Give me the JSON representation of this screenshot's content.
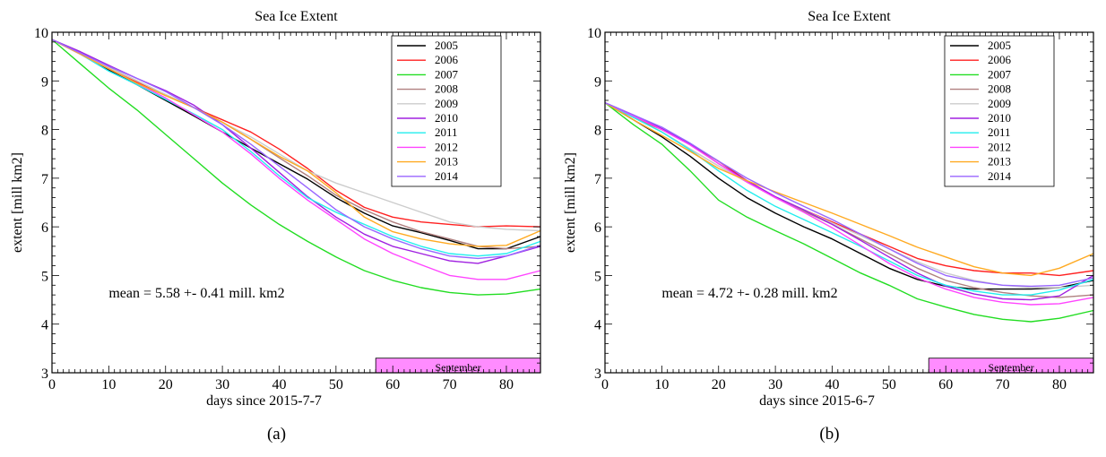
{
  "chart_data": [
    {
      "panel_label": "(a)",
      "type": "line",
      "title": "Sea Ice Extent",
      "xlabel": "days since 2015-7-7",
      "ylabel": "extent [mill km2]",
      "xlim": [
        0,
        86
      ],
      "ylim": [
        3,
        10
      ],
      "xticks": [
        0,
        10,
        20,
        30,
        40,
        50,
        60,
        70,
        80
      ],
      "yticks": [
        3,
        4,
        5,
        6,
        7,
        8,
        9,
        10
      ],
      "grid": false,
      "legend_position": "top-right",
      "annotation": "mean  = 5.58 +- 0.41 mill. km2",
      "shaded_region": {
        "label": "September",
        "x": [
          57,
          86
        ],
        "y": [
          3,
          3.3
        ],
        "color": "#ff66ff"
      },
      "x": [
        0,
        5,
        10,
        15,
        20,
        25,
        30,
        35,
        40,
        45,
        50,
        55,
        60,
        65,
        70,
        75,
        80,
        86
      ],
      "series": [
        {
          "name": "2005",
          "color": "#000000",
          "values": [
            9.85,
            9.55,
            9.22,
            8.92,
            8.6,
            8.28,
            7.95,
            7.62,
            7.3,
            6.98,
            6.6,
            6.28,
            6.02,
            5.88,
            5.72,
            5.55,
            5.55,
            5.8
          ]
        },
        {
          "name": "2006",
          "color": "#ff2020",
          "values": [
            9.85,
            9.55,
            9.25,
            8.97,
            8.7,
            8.45,
            8.2,
            7.95,
            7.6,
            7.2,
            6.75,
            6.4,
            6.2,
            6.1,
            6.05,
            6.0,
            6.02,
            6.0
          ]
        },
        {
          "name": "2007",
          "color": "#22dd22",
          "values": [
            9.85,
            9.35,
            8.85,
            8.4,
            7.9,
            7.4,
            6.9,
            6.45,
            6.05,
            5.7,
            5.38,
            5.1,
            4.9,
            4.75,
            4.65,
            4.6,
            4.62,
            4.72
          ]
        },
        {
          "name": "2008",
          "color": "#b08080",
          "values": [
            9.85,
            9.55,
            9.28,
            9.0,
            8.72,
            8.45,
            8.15,
            7.8,
            7.42,
            7.05,
            6.65,
            6.35,
            6.1,
            5.9,
            5.75,
            5.6,
            5.55,
            5.6
          ]
        },
        {
          "name": "2009",
          "color": "#cccccc",
          "values": [
            9.85,
            9.55,
            9.27,
            9.0,
            8.72,
            8.45,
            8.15,
            7.85,
            7.5,
            7.15,
            6.9,
            6.7,
            6.5,
            6.3,
            6.1,
            6.0,
            5.95,
            5.92
          ]
        },
        {
          "name": "2010",
          "color": "#a020e0",
          "values": [
            9.85,
            9.6,
            9.32,
            9.05,
            8.8,
            8.5,
            8.1,
            7.62,
            7.12,
            6.62,
            6.2,
            5.85,
            5.6,
            5.45,
            5.3,
            5.25,
            5.4,
            5.6
          ]
        },
        {
          "name": "2011",
          "color": "#22eeee",
          "values": [
            9.85,
            9.55,
            9.2,
            8.92,
            8.62,
            8.32,
            8.0,
            7.55,
            7.05,
            6.6,
            6.3,
            6.05,
            5.8,
            5.6,
            5.45,
            5.4,
            5.45,
            5.7
          ]
        },
        {
          "name": "2012",
          "color": "#ff44ff",
          "values": [
            9.85,
            9.55,
            9.25,
            8.95,
            8.65,
            8.3,
            7.95,
            7.5,
            7.0,
            6.55,
            6.15,
            5.75,
            5.45,
            5.22,
            5.0,
            4.92,
            4.92,
            5.1
          ]
        },
        {
          "name": "2013",
          "color": "#ffaa22",
          "values": [
            9.85,
            9.55,
            9.25,
            8.95,
            8.7,
            8.45,
            8.15,
            7.8,
            7.45,
            7.15,
            6.7,
            6.2,
            5.9,
            5.75,
            5.65,
            5.6,
            5.62,
            5.92
          ]
        },
        {
          "name": "2014",
          "color": "#9966ff",
          "values": [
            9.85,
            9.57,
            9.3,
            9.05,
            8.78,
            8.45,
            8.1,
            7.7,
            7.25,
            6.8,
            6.35,
            6.0,
            5.75,
            5.55,
            5.4,
            5.35,
            5.4,
            5.62
          ]
        }
      ]
    },
    {
      "panel_label": "(b)",
      "type": "line",
      "title": "Sea Ice Extent",
      "xlabel": "days since 2015-6-7",
      "ylabel": "extent [mill km2]",
      "xlim": [
        0,
        86
      ],
      "ylim": [
        3,
        10
      ],
      "xticks": [
        0,
        10,
        20,
        30,
        40,
        50,
        60,
        70,
        80
      ],
      "yticks": [
        3,
        4,
        5,
        6,
        7,
        8,
        9,
        10
      ],
      "grid": false,
      "legend_position": "top-right",
      "annotation": "mean  = 4.72 +- 0.28 mill. km2",
      "shaded_region": {
        "label": "September",
        "x": [
          57,
          86
        ],
        "y": [
          3,
          3.3
        ],
        "color": "#ff66ff"
      },
      "x": [
        0,
        5,
        10,
        15,
        20,
        25,
        30,
        35,
        40,
        45,
        50,
        55,
        60,
        65,
        70,
        75,
        80,
        86
      ],
      "series": [
        {
          "name": "2005",
          "color": "#000000",
          "values": [
            8.55,
            8.2,
            7.85,
            7.45,
            7.0,
            6.6,
            6.28,
            6.0,
            5.75,
            5.45,
            5.15,
            4.92,
            4.78,
            4.72,
            4.72,
            4.72,
            4.75,
            4.9
          ]
        },
        {
          "name": "2006",
          "color": "#ff2020",
          "values": [
            8.55,
            8.25,
            8.0,
            7.7,
            7.35,
            6.95,
            6.6,
            6.35,
            6.1,
            5.85,
            5.6,
            5.35,
            5.2,
            5.1,
            5.05,
            5.05,
            5.0,
            5.1
          ]
        },
        {
          "name": "2007",
          "color": "#22dd22",
          "values": [
            8.55,
            8.1,
            7.7,
            7.15,
            6.55,
            6.2,
            5.92,
            5.65,
            5.35,
            5.05,
            4.8,
            4.52,
            4.35,
            4.2,
            4.1,
            4.05,
            4.12,
            4.28
          ]
        },
        {
          "name": "2008",
          "color": "#b08080",
          "values": [
            8.55,
            8.25,
            7.95,
            7.6,
            7.25,
            6.92,
            6.6,
            6.32,
            6.05,
            5.75,
            5.45,
            5.15,
            4.9,
            4.75,
            4.65,
            4.58,
            4.55,
            4.6
          ]
        },
        {
          "name": "2009",
          "color": "#cccccc",
          "values": [
            8.55,
            8.25,
            7.95,
            7.6,
            7.25,
            6.92,
            6.62,
            6.35,
            6.08,
            5.82,
            5.55,
            5.28,
            5.05,
            4.9,
            4.8,
            4.75,
            4.75,
            4.8
          ]
        },
        {
          "name": "2010",
          "color": "#a020e0",
          "values": [
            8.55,
            8.3,
            8.02,
            7.7,
            7.3,
            6.95,
            6.62,
            6.35,
            6.05,
            5.72,
            5.38,
            5.05,
            4.78,
            4.62,
            4.52,
            4.5,
            4.58,
            5.0
          ]
        },
        {
          "name": "2011",
          "color": "#22eeee",
          "values": [
            8.55,
            8.25,
            7.95,
            7.58,
            7.15,
            6.75,
            6.42,
            6.15,
            5.88,
            5.6,
            5.3,
            5.0,
            4.8,
            4.68,
            4.6,
            4.6,
            4.7,
            4.92
          ]
        },
        {
          "name": "2012",
          "color": "#ff44ff",
          "values": [
            8.55,
            8.28,
            8.0,
            7.68,
            7.3,
            6.92,
            6.6,
            6.3,
            5.98,
            5.62,
            5.25,
            4.95,
            4.72,
            4.55,
            4.45,
            4.4,
            4.42,
            4.55
          ]
        },
        {
          "name": "2013",
          "color": "#ffaa22",
          "values": [
            8.55,
            8.2,
            7.88,
            7.55,
            7.2,
            6.95,
            6.72,
            6.5,
            6.28,
            6.05,
            5.82,
            5.58,
            5.38,
            5.18,
            5.05,
            5.0,
            5.15,
            5.45
          ]
        },
        {
          "name": "2014",
          "color": "#9966ff",
          "values": [
            8.55,
            8.3,
            8.05,
            7.72,
            7.35,
            7.0,
            6.7,
            6.42,
            6.15,
            5.85,
            5.55,
            5.25,
            5.0,
            4.88,
            4.8,
            4.78,
            4.8,
            4.95
          ]
        }
      ]
    }
  ]
}
